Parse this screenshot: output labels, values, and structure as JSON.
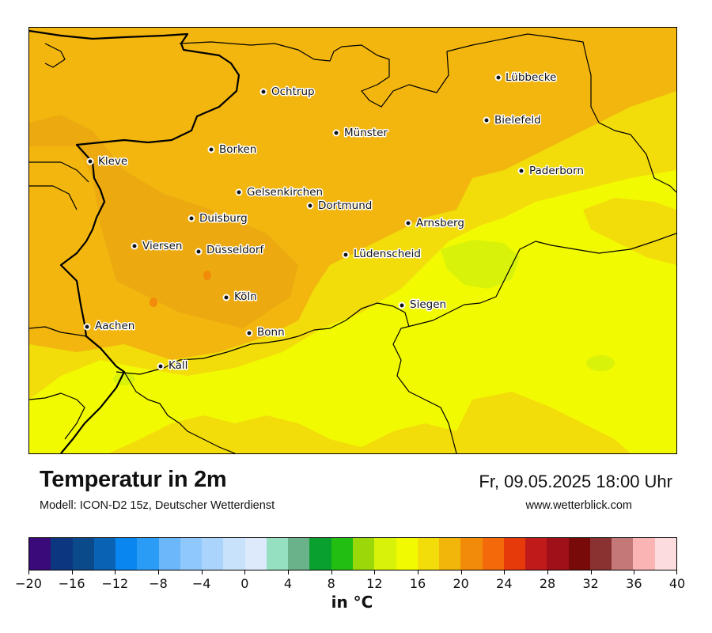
{
  "title": "Temperatur in 2m",
  "subtitle": "Modell: ICON-D2 15z, Deutscher Wetterdienst",
  "datetime": "Fr, 09.05.2025 18:00 Uhr",
  "website": "www.wetterblick.com",
  "unit_label": "in °C",
  "cities": [
    {
      "name": "Lübbecke"
    },
    {
      "name": "Ochtrup"
    },
    {
      "name": "Bielefeld"
    },
    {
      "name": "Münster"
    },
    {
      "name": "Borken"
    },
    {
      "name": "Kleve"
    },
    {
      "name": "Paderborn"
    },
    {
      "name": "Gelsenkirchen"
    },
    {
      "name": "Dortmund"
    },
    {
      "name": "Duisburg"
    },
    {
      "name": "Arnsberg"
    },
    {
      "name": "Viersen"
    },
    {
      "name": "Düsseldorf"
    },
    {
      "name": "Lüdenscheid"
    },
    {
      "name": "Köln"
    },
    {
      "name": "Siegen"
    },
    {
      "name": "Aachen"
    },
    {
      "name": "Bonn"
    },
    {
      "name": "Kall"
    }
  ],
  "colorbar": {
    "min": -20,
    "max": 40,
    "step": 2,
    "tick_labels": [
      "−20",
      "−16",
      "−12",
      "−8",
      "−4",
      "0",
      "4",
      "8",
      "12",
      "16",
      "20",
      "24",
      "28",
      "32",
      "36",
      "40"
    ],
    "colors": [
      "#3a0a7a",
      "#0d3680",
      "#0a4a8a",
      "#0962b4",
      "#0a86f0",
      "#2a9cf6",
      "#6cb6fa",
      "#8ec8fc",
      "#aad4fc",
      "#c8e2fc",
      "#dceafc",
      "#96e0c2",
      "#6ab38a",
      "#0aa02e",
      "#22be12",
      "#9ad80a",
      "#d8f20a",
      "#f2fa02",
      "#f2dc0a",
      "#f2b60a",
      "#f28a0a",
      "#f26a0a",
      "#e63a0a",
      "#c01a1a",
      "#a01018",
      "#780a0a",
      "#8a3232",
      "#c47878",
      "#fab4b4",
      "#fcdcdc"
    ]
  },
  "map_colors": {
    "base": "#f2b60e",
    "zone_20_22": "#ecaa10",
    "zone_18_20": "#f2dc0a",
    "zone_16_18": "#f2fa02",
    "zone_14_16": "#d8f20a",
    "hot_spot": "#f28a0a"
  }
}
